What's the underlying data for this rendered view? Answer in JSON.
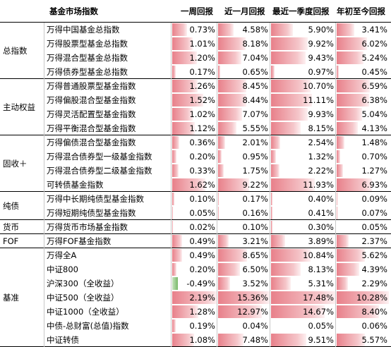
{
  "header": {
    "col_name": "基金市场指数",
    "col_1w": "一周回报",
    "col_1m": "近一月回报",
    "col_1q": "最近一季度回报",
    "col_ytd": "年初至今回报"
  },
  "groups": [
    {
      "label": "总指数",
      "rows": [
        {
          "name": "万得中国基金总指数",
          "w": "0.73%",
          "m": "4.58%",
          "q": "5.90%",
          "y": "3.41%"
        },
        {
          "name": "万得股票型基金总指数",
          "w": "1.01%",
          "m": "8.18%",
          "q": "9.92%",
          "y": "6.02%"
        },
        {
          "name": "万得混合型基金总指数",
          "w": "1.20%",
          "m": "7.04%",
          "q": "9.43%",
          "y": "5.24%"
        },
        {
          "name": "万得债券型基金总指数",
          "w": "0.17%",
          "m": "0.65%",
          "q": "0.97%",
          "y": "0.45%"
        }
      ]
    },
    {
      "label": "主动权益",
      "rows": [
        {
          "name": "万得普通股票型基金指数",
          "w": "1.26%",
          "m": "8.45%",
          "q": "10.70%",
          "y": "6.59%"
        },
        {
          "name": "万得偏股混合型基金指数",
          "w": "1.52%",
          "m": "8.44%",
          "q": "11.11%",
          "y": "6.38%"
        },
        {
          "name": "万得灵活配置型基金指数",
          "w": "1.02%",
          "m": "7.07%",
          "q": "9.93%",
          "y": "5.04%"
        },
        {
          "name": "万得平衡混合型基金指数",
          "w": "1.12%",
          "m": "5.55%",
          "q": "8.15%",
          "y": "4.13%"
        }
      ]
    },
    {
      "label": "固收＋",
      "rows": [
        {
          "name": "万得偏债混合型基金指数",
          "w": "0.36%",
          "m": "2.01%",
          "q": "2.54%",
          "y": "1.48%"
        },
        {
          "name": "万得混合债券型一级基金指数",
          "w": "0.20%",
          "m": "0.95%",
          "q": "1.32%",
          "y": "0.70%"
        },
        {
          "name": "万得混合债券型二级基金指数",
          "w": "0.33%",
          "m": "1.75%",
          "q": "2.22%",
          "y": "1.27%"
        },
        {
          "name": "可转债基金指数",
          "w": "1.62%",
          "m": "9.22%",
          "q": "11.93%",
          "y": "6.93%"
        }
      ]
    },
    {
      "label": "纯债",
      "rows": [
        {
          "name": "万得中长期纯债型基金指数",
          "w": "0.10%",
          "m": "0.17%",
          "q": "0.40%",
          "y": "0.09%"
        },
        {
          "name": "万得短期纯债型基金指数",
          "w": "0.05%",
          "m": "0.16%",
          "q": "0.41%",
          "y": "0.07%"
        }
      ]
    },
    {
      "label": "货币",
      "rows": [
        {
          "name": "万得货币市场基金指数",
          "w": "0.02%",
          "m": "0.10%",
          "q": "0.30%",
          "y": "0.05%"
        }
      ]
    },
    {
      "label": "FOF",
      "rows": [
        {
          "name": "万得FOF基金指数",
          "w": "0.49%",
          "m": "3.21%",
          "q": "3.89%",
          "y": "2.37%"
        }
      ]
    },
    {
      "label": "基准",
      "rows": [
        {
          "name": "万得全A",
          "w": "0.49%",
          "m": "8.65%",
          "q": "10.84%",
          "y": "5.62%"
        },
        {
          "name": "中证800",
          "w": "0.20%",
          "m": "6.50%",
          "q": "8.13%",
          "y": "4.39%"
        },
        {
          "name": "沪深300（全收益）",
          "w": "-0.49%",
          "m": "3.52%",
          "q": "5.31%",
          "y": "2.29%"
        },
        {
          "name": "中证500（全收益）",
          "w": "2.19%",
          "m": "15.36%",
          "q": "17.48%",
          "y": "10.28%"
        },
        {
          "name": "中证1000（全收益）",
          "w": "1.28%",
          "m": "12.97%",
          "q": "14.67%",
          "y": "8.40%"
        },
        {
          "name": "中债-总财富(总值)指数",
          "w": "0.19%",
          "m": "0.04%",
          "q": "0.05%",
          "y": "0.06%"
        },
        {
          "name": "中证转债",
          "w": "1.08%",
          "m": "7.48%",
          "q": "9.51%",
          "y": "5.57%"
        }
      ]
    }
  ],
  "colors": {
    "positive_bar": "#e8808a",
    "negative_bar": "#79b96a",
    "rule_line": "#000000"
  }
}
